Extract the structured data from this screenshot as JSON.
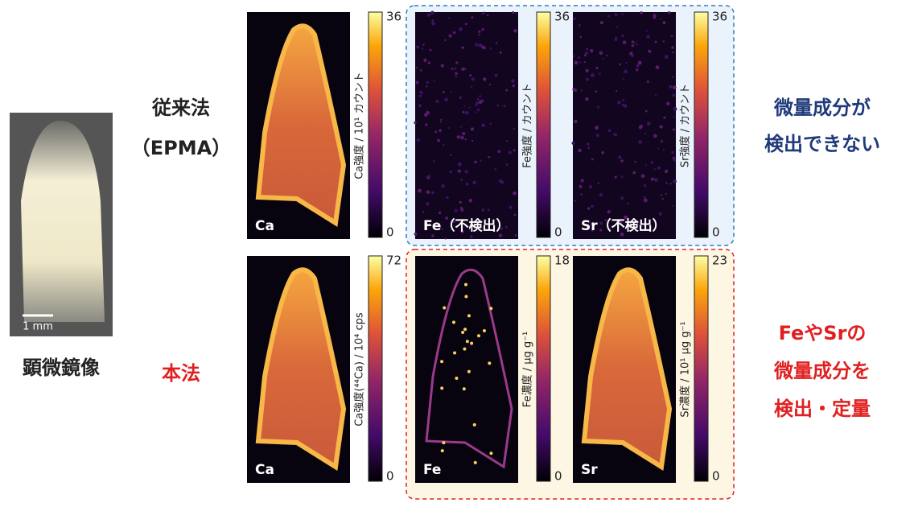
{
  "micrograph": {
    "scale_bar": "1 mm",
    "caption": "顕微鏡像"
  },
  "rows": [
    {
      "method": [
        "従来法",
        "（EPMA）"
      ],
      "conclusion": [
        "微量成分が",
        "検出できない"
      ],
      "panels": [
        {
          "label": "Ca",
          "colorbar": {
            "title": "Ca強度 / 10¹ カウント",
            "max": 36,
            "min": 0
          }
        },
        {
          "label": "Fe（不検出）",
          "colorbar": {
            "title": "Fe強度 / カウント",
            "max": 36,
            "min": 0
          }
        },
        {
          "label": "Sr（不検出）",
          "colorbar": {
            "title": "Sr強度 / カウント",
            "max": 36,
            "min": 0
          }
        }
      ]
    },
    {
      "method": [
        "本法"
      ],
      "conclusion": [
        "FeやSrの",
        "微量成分を",
        "検出・定量"
      ],
      "panels": [
        {
          "label": "Ca",
          "colorbar": {
            "title": "Ca強度(⁴⁴Ca) / 10⁴ cps",
            "max": 72,
            "min": 0
          }
        },
        {
          "label": "Fe",
          "colorbar": {
            "title": "Fe濃度 / μg g⁻¹",
            "max": 18,
            "min": 0
          }
        },
        {
          "label": "Sr",
          "colorbar": {
            "title": "Sr濃度 / 10¹ μg g⁻¹",
            "max": 23,
            "min": 0
          }
        }
      ]
    }
  ]
}
